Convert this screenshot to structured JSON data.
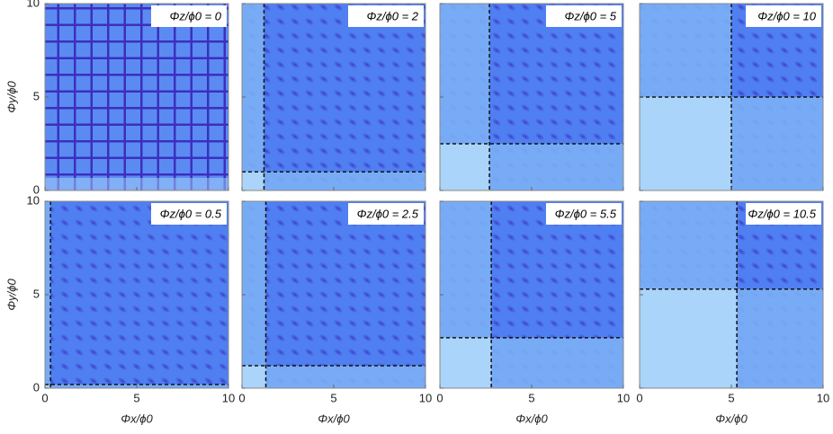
{
  "chart_data": {
    "type": "heatmap",
    "x_label": "Φx/ϕ0",
    "y_label": "Φy/ϕ0",
    "xlim": [
      0,
      10
    ],
    "ylim": [
      0,
      10
    ],
    "xticks": [
      0,
      5,
      10
    ],
    "yticks": [
      0,
      5,
      10
    ],
    "panels": [
      {
        "label": "Φz/ϕ0 = 0",
        "dashed_x": null,
        "dashed_y": null
      },
      {
        "label": "Φz/ϕ0 = 2",
        "dashed_x": 1.2,
        "dashed_y": 1.0
      },
      {
        "label": "Φz/ϕ0 = 5",
        "dashed_x": 2.7,
        "dashed_y": 2.5
      },
      {
        "label": "Φz/ϕ0 = 10",
        "dashed_x": 5.0,
        "dashed_y": 5.0
      },
      {
        "label": "Φz/ϕ0 = 0.5",
        "dashed_x": 0.3,
        "dashed_y": 0.2
      },
      {
        "label": "Φz/ϕ0 = 2.5",
        "dashed_x": 1.3,
        "dashed_y": 1.2
      },
      {
        "label": "Φz/ϕ0 = 5.5",
        "dashed_x": 2.8,
        "dashed_y": 2.7
      },
      {
        "label": "Φz/ϕ0 = 10.5",
        "dashed_x": 5.3,
        "dashed_y": 5.3
      }
    ]
  }
}
